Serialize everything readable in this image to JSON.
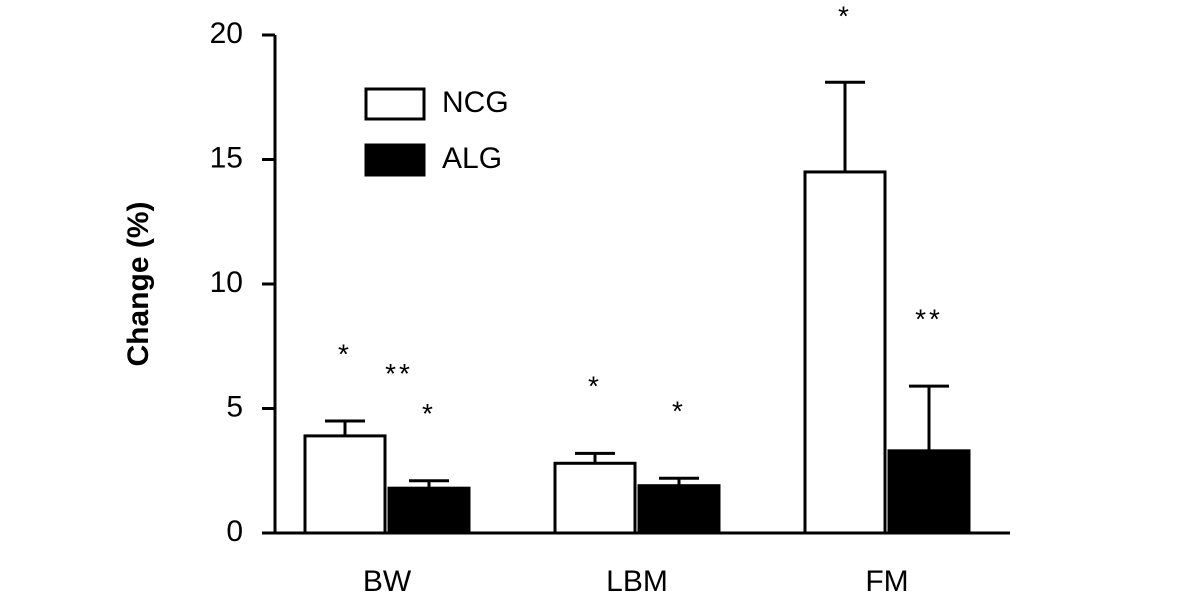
{
  "chart_data": {
    "type": "bar",
    "y_label": "Change (%)",
    "categories": [
      "BW",
      "LBM",
      "FM"
    ],
    "series": [
      {
        "name": "NCG",
        "color": "#ffffff",
        "values": [
          3.9,
          2.8,
          14.5
        ],
        "errors": [
          0.6,
          0.4,
          3.6
        ],
        "annotations": [
          [
            "*"
          ],
          [
            "*"
          ],
          [
            "*"
          ]
        ]
      },
      {
        "name": "ALG",
        "color": "#000000",
        "values": [
          1.8,
          1.9,
          3.3
        ],
        "errors": [
          0.3,
          0.3,
          2.6
        ],
        "annotations": [
          [
            "*",
            "**"
          ],
          [
            "*"
          ],
          [
            "**"
          ]
        ]
      }
    ],
    "ylim": [
      0,
      20
    ],
    "yticks": [
      0,
      5,
      10,
      15,
      20
    ],
    "grid": false
  }
}
